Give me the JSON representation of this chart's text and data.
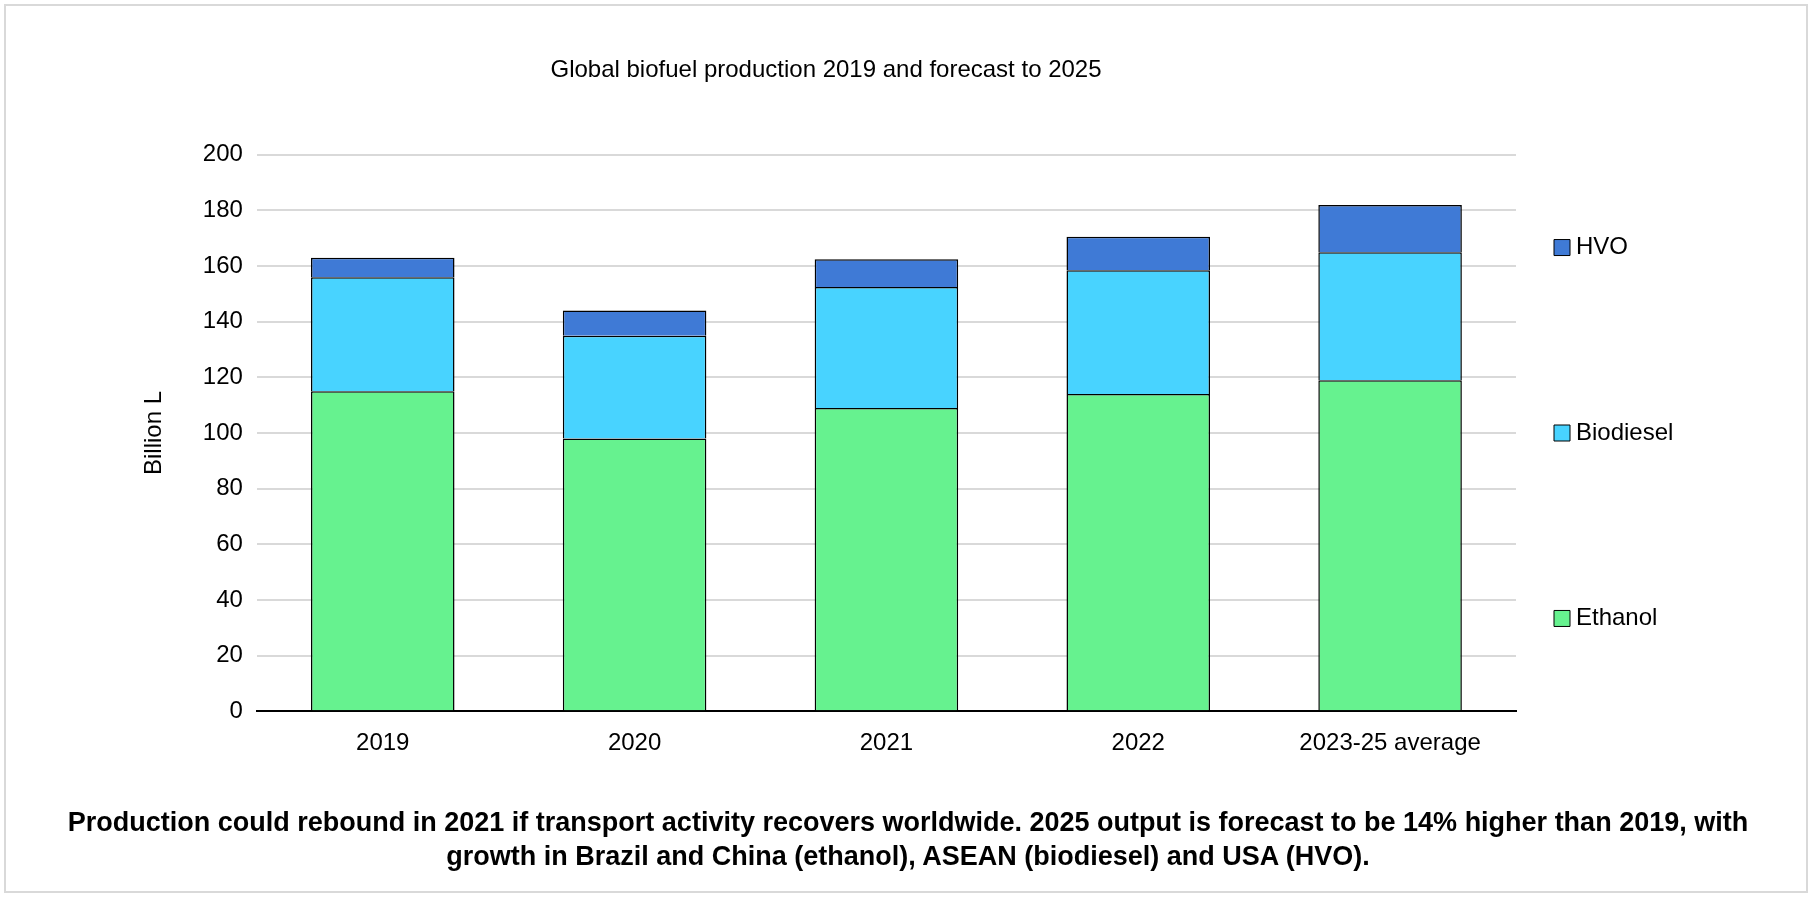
{
  "chart_data": {
    "type": "bar",
    "title": "Global biofuel production 2019 and forecast to 2025",
    "ylabel": "Billion L",
    "categories": [
      "2019",
      "2020",
      "2021",
      "2022",
      "2023-25 average"
    ],
    "stacked": true,
    "series": [
      {
        "name": "Ethanol",
        "color": "#66f28f",
        "values": [
          115,
          98,
          109,
          114,
          119
        ]
      },
      {
        "name": "Biodiesel",
        "color": "#48d3ff",
        "values": [
          41,
          37,
          43.5,
          44.5,
          46
        ]
      },
      {
        "name": "HVO",
        "color": "#3f7ad6",
        "values": [
          7,
          9,
          10,
          12,
          17
        ]
      }
    ],
    "ylim": [
      0,
      200
    ],
    "yticks": [
      0,
      20,
      40,
      60,
      80,
      100,
      120,
      140,
      160,
      180,
      200
    ],
    "grid": "y",
    "legend": "right",
    "annotations": [
      "Production could rebound in 2021 if transport activity recovers worldwide. 2025 output is forecast to be 14% higher than 2019, with growth in Brazil and China (ethanol), ASEAN (biodiesel) and USA (HVO)."
    ]
  }
}
